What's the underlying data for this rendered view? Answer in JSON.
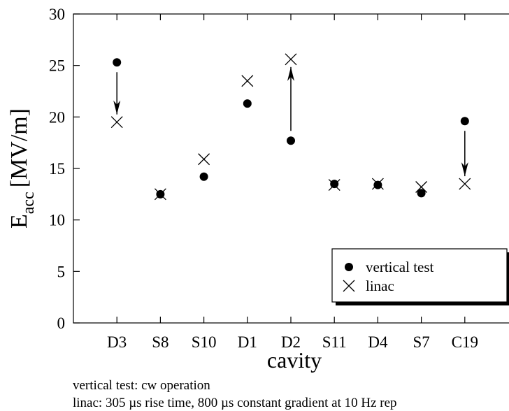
{
  "chart_data": {
    "type": "scatter",
    "ylabel": "E",
    "ylabel_sub": "acc",
    "ylabel_unit": "[MV/m]",
    "xlabel": "cavity",
    "categories": [
      "D3",
      "S8",
      "S10",
      "D1",
      "D2",
      "S11",
      "D4",
      "S7",
      "C19"
    ],
    "series": [
      {
        "name": "vertical test",
        "color": "#000000",
        "marker": "circle",
        "values": [
          25.3,
          12.5,
          14.2,
          21.3,
          17.7,
          13.5,
          13.4,
          12.6,
          19.6
        ]
      },
      {
        "name": "linac",
        "color": "#000000",
        "marker": "x",
        "values": [
          19.5,
          12.5,
          15.9,
          23.5,
          25.6,
          13.4,
          13.5,
          13.2,
          13.5
        ]
      }
    ],
    "ylim": [
      0,
      30
    ],
    "yticks": [
      0,
      5,
      10,
      15,
      20,
      25,
      30
    ],
    "legend": "lower right",
    "notes": [
      "vertical test: cw operation",
      "linac: 305 µs rise time, 800 µs constant gradient at 10 Hz rep"
    ]
  }
}
